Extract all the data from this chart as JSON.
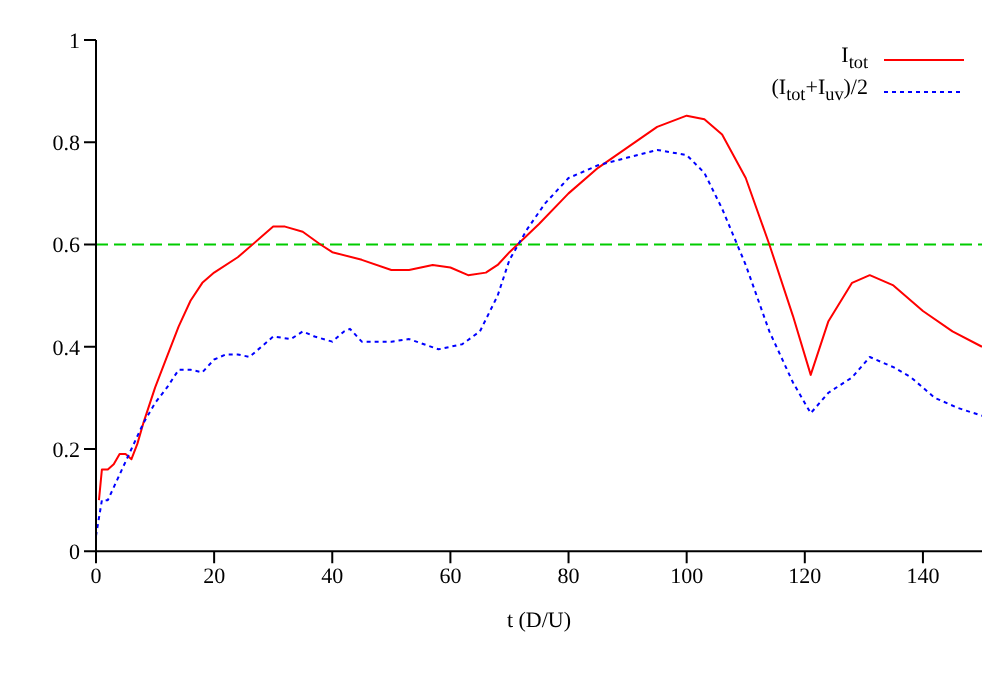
{
  "chart_data": {
    "type": "line",
    "xlabel": "t (D/U)",
    "xlim": [
      0,
      150
    ],
    "xticks": [
      0,
      20,
      40,
      60,
      80,
      100,
      120,
      140
    ],
    "ylim": [
      0,
      1
    ],
    "yticks": [
      0,
      0.2,
      0.4,
      0.6,
      0.8,
      1
    ],
    "legend": "top right",
    "grid": false,
    "marker": "none",
    "ref_lines": [
      {
        "axis": "y",
        "value": 0.6,
        "color": "#00cc00",
        "line_style": "dashed"
      }
    ],
    "series": [
      {
        "name": "I$_{tot}$",
        "color": "#ff0000",
        "line_style": "solid",
        "x": [
          0.5,
          1,
          2,
          3,
          4,
          5,
          6,
          7,
          8,
          10,
          12,
          14,
          16,
          18,
          20,
          24,
          28,
          30,
          32,
          35,
          38,
          40,
          45,
          50,
          53,
          57,
          60,
          63,
          66,
          68,
          70,
          75,
          80,
          85,
          90,
          95,
          100,
          103,
          106,
          110,
          114,
          118,
          121,
          124,
          128,
          131,
          135,
          140,
          145,
          150
        ],
        "values": [
          0.1,
          0.16,
          0.16,
          0.17,
          0.19,
          0.19,
          0.18,
          0.21,
          0.25,
          0.32,
          0.38,
          0.44,
          0.49,
          0.525,
          0.545,
          0.575,
          0.615,
          0.635,
          0.635,
          0.625,
          0.6,
          0.585,
          0.57,
          0.55,
          0.55,
          0.56,
          0.555,
          0.54,
          0.545,
          0.56,
          0.585,
          0.64,
          0.7,
          0.75,
          0.79,
          0.83,
          0.852,
          0.845,
          0.815,
          0.73,
          0.6,
          0.46,
          0.345,
          0.45,
          0.525,
          0.54,
          0.52,
          0.47,
          0.43,
          0.4
        ]
      },
      {
        "name": "(I$_{tot}$+I$_{uv}$)/2",
        "color": "#0000ff",
        "line_style": "dotted",
        "x": [
          0,
          1,
          2,
          4,
          6,
          8,
          10,
          12,
          14,
          16,
          18,
          20,
          22,
          24,
          26,
          28,
          30,
          33,
          35,
          37,
          40,
          42,
          43,
          45,
          50,
          53,
          58,
          62,
          65,
          68,
          70,
          73,
          76,
          80,
          85,
          90,
          95,
          100,
          103,
          106,
          110,
          114,
          118,
          121,
          124,
          128,
          131,
          135,
          138,
          142,
          146,
          150
        ],
        "values": [
          0.03,
          0.1,
          0.1,
          0.15,
          0.2,
          0.25,
          0.29,
          0.32,
          0.355,
          0.355,
          0.35,
          0.375,
          0.385,
          0.385,
          0.38,
          0.4,
          0.42,
          0.415,
          0.43,
          0.42,
          0.41,
          0.43,
          0.435,
          0.41,
          0.41,
          0.415,
          0.395,
          0.405,
          0.43,
          0.5,
          0.57,
          0.63,
          0.68,
          0.73,
          0.755,
          0.77,
          0.785,
          0.775,
          0.74,
          0.67,
          0.56,
          0.43,
          0.33,
          0.27,
          0.31,
          0.34,
          0.38,
          0.36,
          0.34,
          0.3,
          0.28,
          0.265
        ]
      }
    ]
  }
}
